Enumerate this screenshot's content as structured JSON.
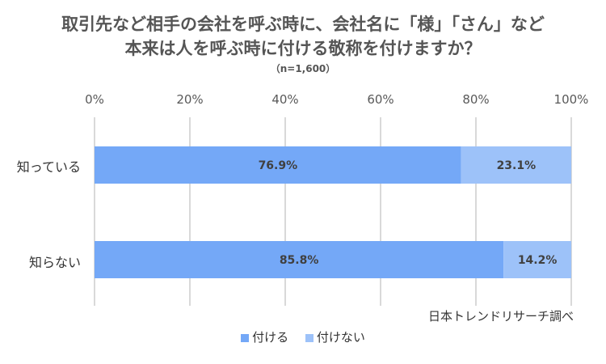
{
  "chart_data": {
    "type": "bar",
    "orientation": "horizontal",
    "stacked": true,
    "title_lines": [
      "取引先など相手の会社を呼ぶ時に、会社名に「様」「さん」など",
      "本来は人を呼ぶ時に付ける敬称を付けますか？"
    ],
    "subtitle": "（n=1,600）",
    "categories": [
      "知っている",
      "知らない"
    ],
    "series": [
      {
        "name": "付ける",
        "values": [
          76.9,
          85.8
        ],
        "color": "#74a8f7"
      },
      {
        "name": "付けない",
        "values": [
          23.1,
          14.2
        ],
        "color": "#9dc2f9"
      }
    ],
    "data_labels": [
      [
        "76.9%",
        "85.8%"
      ],
      [
        "23.1%",
        "14.2%"
      ]
    ],
    "xlim": [
      0,
      100
    ],
    "xticks": [
      0,
      20,
      40,
      60,
      80,
      100
    ],
    "xtick_labels": [
      "0%",
      "20%",
      "40%",
      "60%",
      "80%",
      "100%"
    ],
    "grid": true,
    "legend_position": "bottom",
    "source": "日本トレンドリサーチ調べ"
  }
}
